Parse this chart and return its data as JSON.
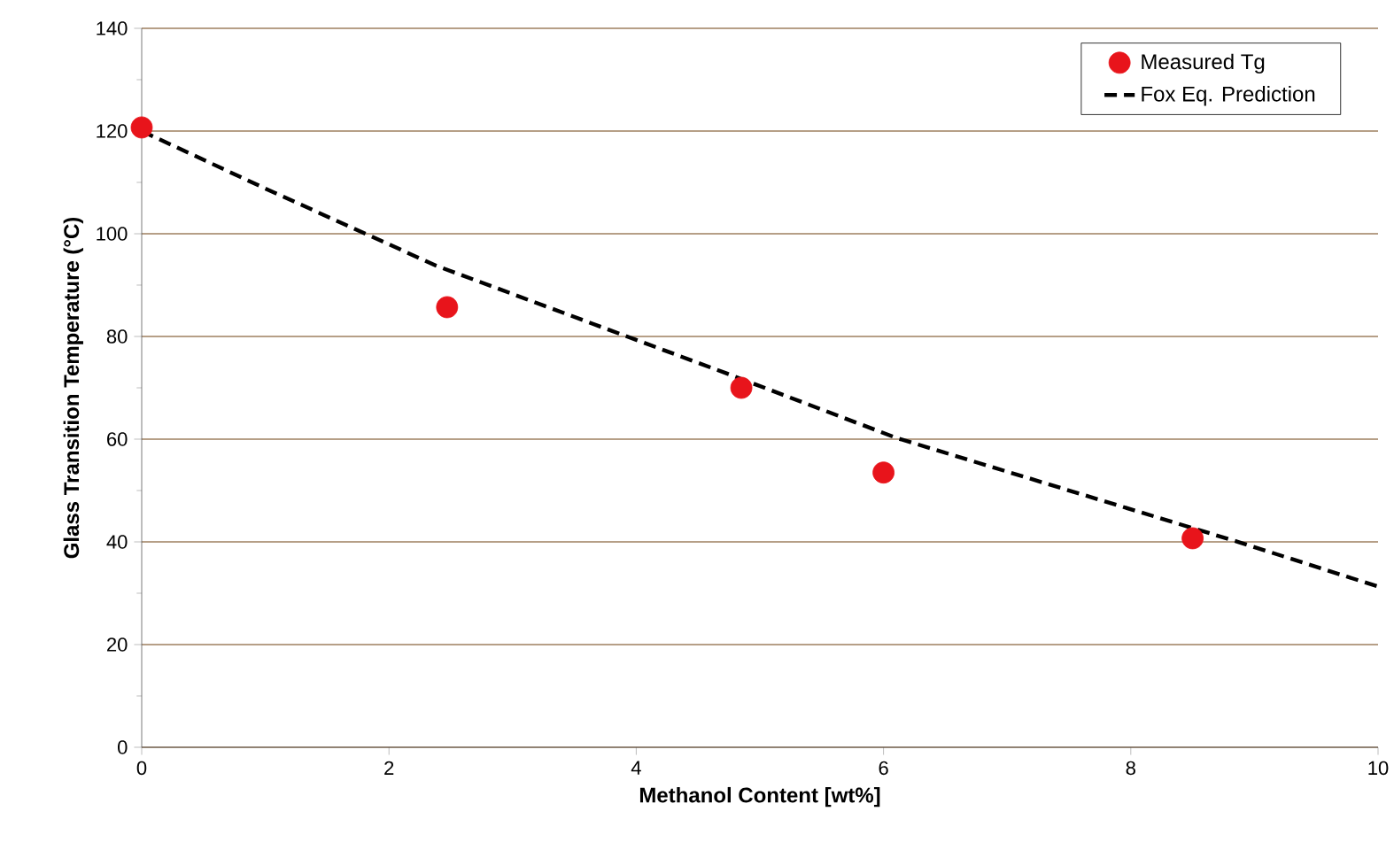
{
  "chart_data": {
    "type": "scatter",
    "xlabel": "Methanol Content [wt%]",
    "ylabel": "Glass Transition Temperature (°C)",
    "xlim": [
      0,
      10
    ],
    "xticks": [
      0,
      2,
      4,
      6,
      8,
      10
    ],
    "ylim": [
      0,
      140
    ],
    "yticks": [
      0,
      20,
      40,
      60,
      80,
      100,
      120,
      140
    ],
    "grid": "y",
    "legend": "top right",
    "series": [
      {
        "name": "Measured Tg",
        "marker": "circle",
        "color": "#e8141b",
        "x": [
          0,
          2.47,
          4.85,
          6.0,
          8.5
        ],
        "values": [
          120.7,
          85.7,
          70.0,
          53.5,
          40.7
        ]
      },
      {
        "name": "Fox Eq. Prediction",
        "type": "line",
        "marker": "none",
        "line_style": "dashed",
        "color": "#000000",
        "x": [
          0,
          1,
          2.38,
          4.72,
          6.11,
          8.88,
          10
        ],
        "values": [
          120,
          108.8,
          93.8,
          72.9,
          60.2,
          39.9,
          31.3
        ]
      }
    ]
  }
}
